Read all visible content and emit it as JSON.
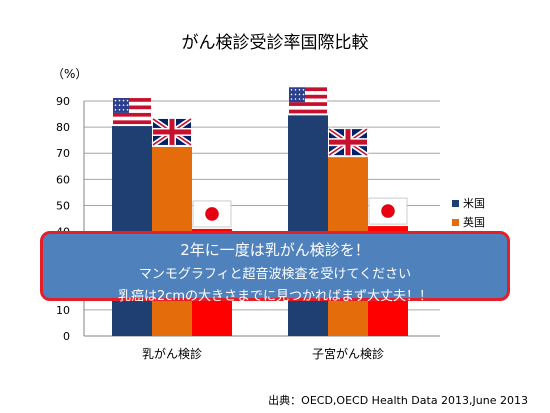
{
  "chart_data": {
    "type": "bar",
    "title": "がん検診受診率国際比較",
    "ylabel": "（%）",
    "ylim": [
      0,
      90
    ],
    "yticks": [
      0,
      10,
      20,
      30,
      40,
      50,
      60,
      70,
      80,
      90
    ],
    "categories": [
      "乳がん検診",
      "子宮がん検診"
    ],
    "series": [
      {
        "name": "米国",
        "color": "#1f3f73",
        "flag": "us-flag",
        "values": [
          80.4,
          84.5
        ]
      },
      {
        "name": "英国",
        "color": "#e46c0a",
        "flag": "uk-flag",
        "values": [
          72.4,
          68.5
        ]
      },
      {
        "name": "日本",
        "color": "#ff0000",
        "flag": "japan-flag",
        "values": [
          41.0,
          42.1
        ]
      }
    ],
    "legend_position": "right",
    "grid": true
  },
  "callout": {
    "line1": "2年に一度は乳がん検診を！",
    "line2": "マンモグラフィと超音波検査を受けてください",
    "line3": "乳癌は2cmの大きさまでに見つかればまず大丈夫！！"
  },
  "source": "出典：OECD,OECD Health Data 2013,June 2013"
}
